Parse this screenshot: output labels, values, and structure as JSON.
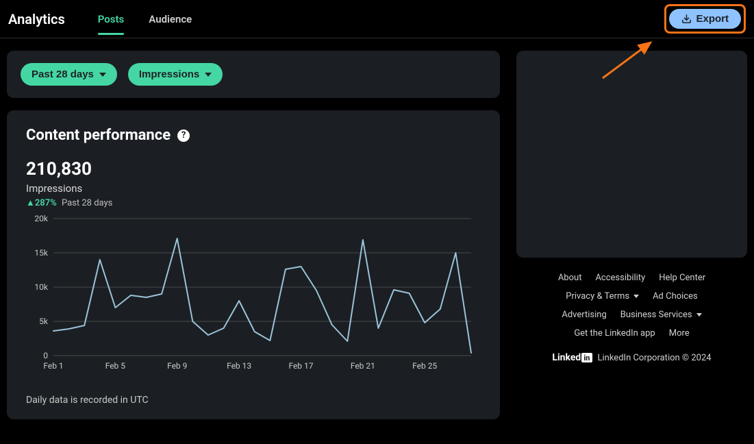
{
  "header": {
    "title": "Analytics",
    "tabs": [
      {
        "label": "Posts",
        "active": true
      },
      {
        "label": "Audience",
        "active": false
      }
    ],
    "export_label": "Export"
  },
  "filters": {
    "date_range": "Past 28 days",
    "metric": "Impressions",
    "pill_color": "#44d7a3",
    "pill_text_color": "#1d2226"
  },
  "content_performance": {
    "title": "Content performance",
    "total": "210,830",
    "metric_label": "Impressions",
    "change_percent": "287%",
    "change_direction_icon": "▲",
    "change_period": "Past 28 days",
    "change_color": "#44d7a3",
    "footnote": "Daily data is recorded in UTC",
    "chart": {
      "type": "line",
      "line_color": "#9ac3d9",
      "line_width": 2,
      "grid_color": "#4a4a4a",
      "axis_text_color": "#c9c9c9",
      "axis_fontsize": 12,
      "background_color": "#1b1f23",
      "ylim": [
        0,
        20000
      ],
      "ytick_step": 5000,
      "ytick_labels": [
        "0",
        "5k",
        "10k",
        "15k",
        "20k"
      ],
      "x_labels": [
        "Feb 1",
        "Feb 5",
        "Feb 9",
        "Feb 13",
        "Feb 17",
        "Feb 21",
        "Feb 25"
      ],
      "x_label_step": 4,
      "values": [
        3600,
        3900,
        4400,
        14000,
        7000,
        8800,
        8500,
        9000,
        17100,
        5000,
        3000,
        4000,
        8000,
        3500,
        2200,
        12600,
        13000,
        9500,
        4500,
        2100,
        16900,
        4000,
        9600,
        9100,
        4800,
        6800,
        15000,
        400
      ]
    }
  },
  "sidebar": {
    "links_row1": [
      "About",
      "Accessibility",
      "Help Center"
    ],
    "links_row2": [
      "Privacy & Terms",
      "Ad Choices"
    ],
    "links_row2_dropdown_index": 0,
    "links_row3": [
      "Advertising",
      "Business Services"
    ],
    "links_row3_dropdown_index": 1,
    "links_row4": [
      "Get the LinkedIn app",
      "More"
    ],
    "brand": "Linked",
    "brand_suffix": "in",
    "copyright": "LinkedIn Corporation © 2024"
  },
  "annotation": {
    "highlight_border_color": "#f97316",
    "arrow_color": "#f97316"
  }
}
